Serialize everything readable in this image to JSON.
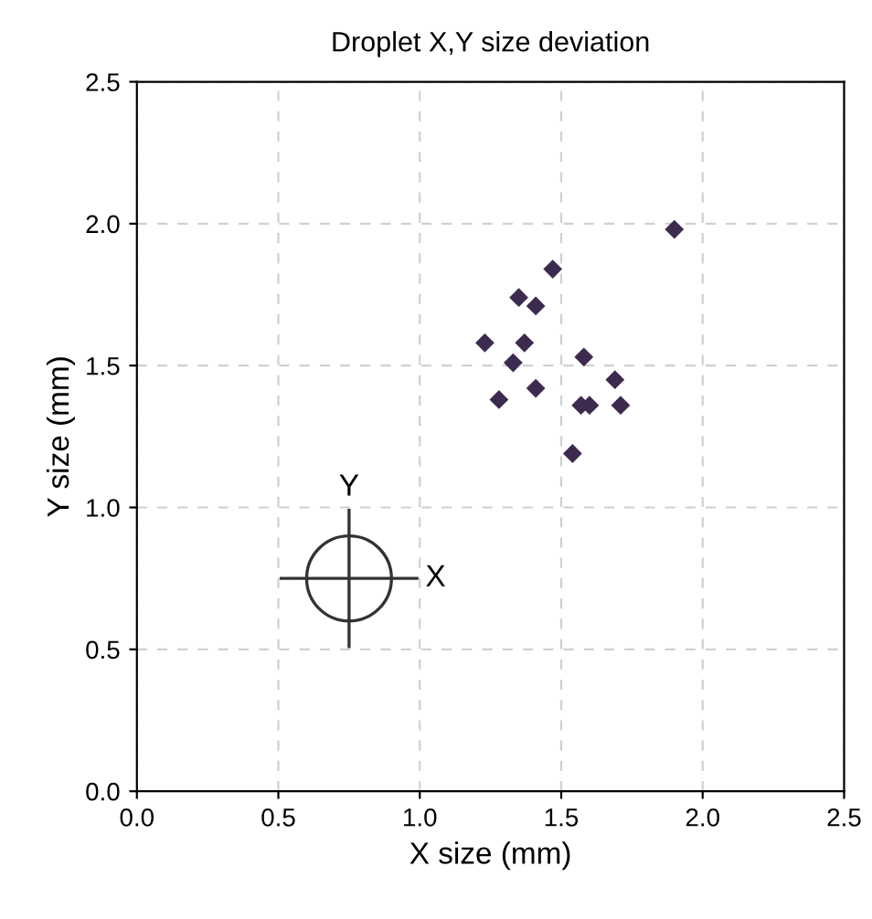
{
  "chart_data": {
    "type": "scatter",
    "title": "Droplet X,Y size deviation",
    "xlabel": "X size (mm)",
    "ylabel": "Y size (mm)",
    "annotations": [
      "X",
      "Y"
    ],
    "series": [
      {
        "color": "#3d2b4f",
        "x": [
          1.9,
          1.47,
          1.35,
          1.41,
          1.23,
          1.37,
          1.33,
          1.58,
          1.69,
          1.28,
          1.41,
          1.57,
          1.6,
          1.71,
          1.54
        ],
        "values": [
          1.98,
          1.84,
          1.74,
          1.71,
          1.58,
          1.58,
          1.51,
          1.53,
          1.45,
          1.38,
          1.42,
          1.36,
          1.36,
          1.36,
          1.19
        ]
      }
    ],
    "xlim": [
      0,
      2.5
    ],
    "ylim": [
      0,
      2.5
    ],
    "xticks": [
      {
        "value": 0,
        "label": "0.0"
      },
      0.5,
      {
        "value": 1,
        "label": "1.0"
      },
      1.5,
      {
        "value": 2,
        "label": "2.0"
      },
      2.5
    ],
    "yticks": [
      {
        "value": 0,
        "label": "0.0"
      },
      0.5,
      {
        "value": 1,
        "label": "1.0"
      },
      1.5,
      {
        "value": 2,
        "label": "2.0"
      },
      2.5
    ],
    "grid": true,
    "marker": "diamond",
    "legend": false
  }
}
